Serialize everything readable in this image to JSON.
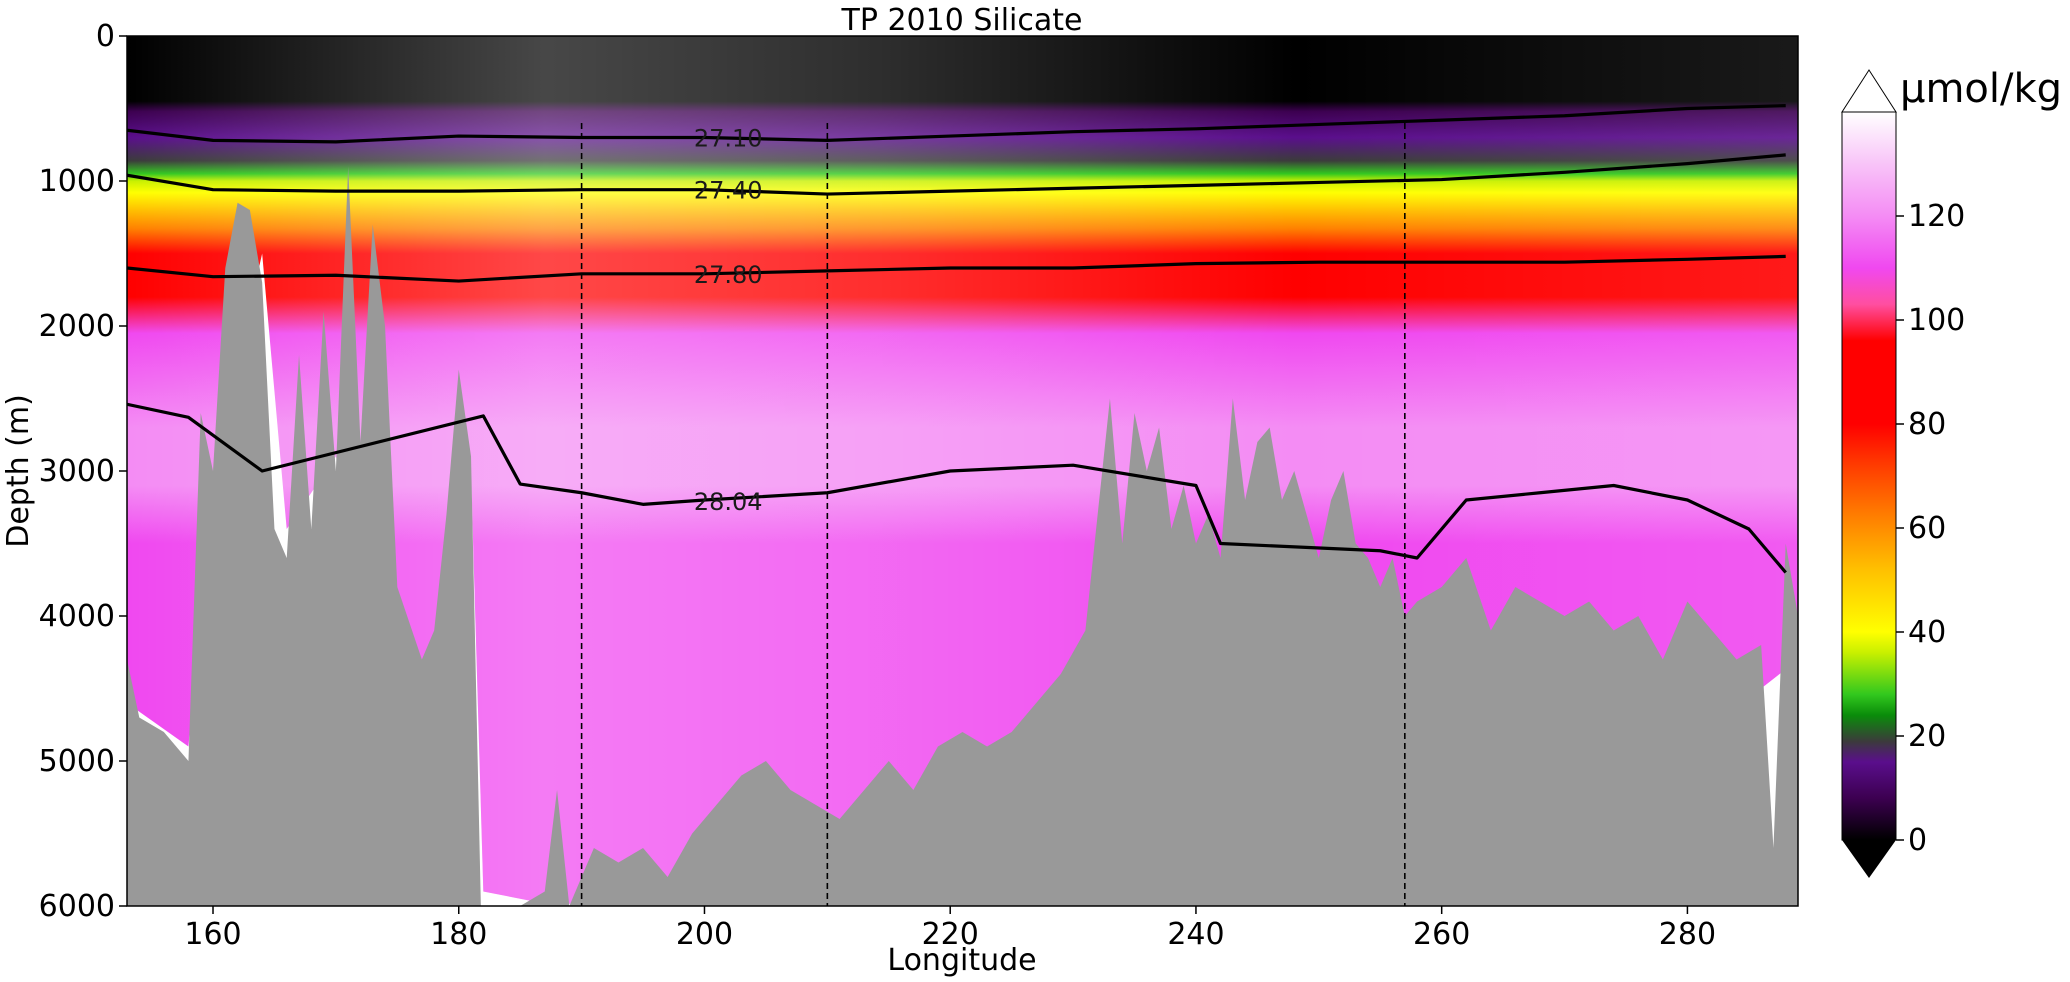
{
  "chart_data": {
    "type": "heatmap",
    "title": "TP 2010 Silicate",
    "xlabel": "Longitude",
    "ylabel": "Depth (m)",
    "xlim": [
      153,
      289
    ],
    "ylim": [
      6000,
      0
    ],
    "xticks": [
      160,
      180,
      200,
      220,
      240,
      260,
      280
    ],
    "yticks": [
      0,
      1000,
      2000,
      3000,
      4000,
      5000,
      6000
    ],
    "colorbar": {
      "label": "µmol/kg",
      "range": [
        0,
        140
      ],
      "ticks": [
        0,
        20,
        40,
        60,
        80,
        100,
        120
      ],
      "extend": "both",
      "stops": [
        {
          "value": 0,
          "color": "#000000"
        },
        {
          "value": 8,
          "color": "#3c0050"
        },
        {
          "value": 15,
          "color": "#5a0e8c"
        },
        {
          "value": 19,
          "color": "#3b3b3b"
        },
        {
          "value": 24,
          "color": "#0a8c0a"
        },
        {
          "value": 28,
          "color": "#32c81e"
        },
        {
          "value": 36,
          "color": "#c8f000"
        },
        {
          "value": 40,
          "color": "#ffff00"
        },
        {
          "value": 52,
          "color": "#ffc000"
        },
        {
          "value": 62,
          "color": "#ff8000"
        },
        {
          "value": 72,
          "color": "#ff3c00"
        },
        {
          "value": 80,
          "color": "#ff0000"
        },
        {
          "value": 96,
          "color": "#ff0000"
        },
        {
          "value": 103,
          "color": "#ff4ea0"
        },
        {
          "value": 110,
          "color": "#f048f0"
        },
        {
          "value": 120,
          "color": "#f48cf4"
        },
        {
          "value": 130,
          "color": "#f8c4f8"
        },
        {
          "value": 140,
          "color": "#ffffff"
        }
      ],
      "under_color": "#000000",
      "over_color": "#ffffff"
    },
    "contours": [
      {
        "level": "27.10",
        "label_lon": 199,
        "depth": [
          [
            153,
            650
          ],
          [
            160,
            720
          ],
          [
            170,
            730
          ],
          [
            180,
            690
          ],
          [
            190,
            700
          ],
          [
            200,
            700
          ],
          [
            210,
            720
          ],
          [
            220,
            690
          ],
          [
            230,
            660
          ],
          [
            240,
            640
          ],
          [
            250,
            610
          ],
          [
            260,
            580
          ],
          [
            270,
            550
          ],
          [
            280,
            500
          ],
          [
            288,
            480
          ]
        ]
      },
      {
        "level": "27.40",
        "label_lon": 199,
        "depth": [
          [
            153,
            960
          ],
          [
            160,
            1060
          ],
          [
            170,
            1070
          ],
          [
            180,
            1070
          ],
          [
            190,
            1060
          ],
          [
            200,
            1060
          ],
          [
            210,
            1090
          ],
          [
            220,
            1070
          ],
          [
            230,
            1050
          ],
          [
            240,
            1030
          ],
          [
            250,
            1010
          ],
          [
            260,
            990
          ],
          [
            270,
            940
          ],
          [
            280,
            880
          ],
          [
            288,
            820
          ]
        ]
      },
      {
        "level": "27.80",
        "label_lon": 199,
        "depth": [
          [
            153,
            1600
          ],
          [
            160,
            1660
          ],
          [
            170,
            1650
          ],
          [
            180,
            1690
          ],
          [
            190,
            1640
          ],
          [
            200,
            1640
          ],
          [
            210,
            1620
          ],
          [
            220,
            1600
          ],
          [
            230,
            1600
          ],
          [
            240,
            1570
          ],
          [
            250,
            1560
          ],
          [
            260,
            1560
          ],
          [
            270,
            1560
          ],
          [
            280,
            1540
          ],
          [
            288,
            1520
          ]
        ]
      },
      {
        "level": "28.04",
        "label_lon": 199,
        "depth": [
          [
            153,
            2540
          ],
          [
            158,
            2630
          ],
          [
            164,
            3000
          ],
          [
            182,
            2620
          ],
          [
            185,
            3090
          ],
          [
            190,
            3150
          ],
          [
            195,
            3230
          ],
          [
            200,
            3200
          ],
          [
            210,
            3150
          ],
          [
            220,
            3000
          ],
          [
            230,
            2960
          ],
          [
            240,
            3100
          ],
          [
            242,
            3500
          ],
          [
            255,
            3550
          ],
          [
            258,
            3600
          ],
          [
            262,
            3200
          ],
          [
            268,
            3150
          ],
          [
            274,
            3100
          ],
          [
            280,
            3200
          ],
          [
            285,
            3400
          ],
          [
            288,
            3700
          ]
        ]
      }
    ],
    "vertical_lines_lon": [
      190,
      210,
      257
    ],
    "bathymetry": [
      [
        153,
        4300
      ],
      [
        154,
        4700
      ],
      [
        156,
        4800
      ],
      [
        158,
        5000
      ],
      [
        159,
        2600
      ],
      [
        160,
        3000
      ],
      [
        161,
        1600
      ],
      [
        162,
        1150
      ],
      [
        163,
        1200
      ],
      [
        164,
        1700
      ],
      [
        165,
        3400
      ],
      [
        166,
        3600
      ],
      [
        167,
        2200
      ],
      [
        168,
        3400
      ],
      [
        169,
        1900
      ],
      [
        170,
        3000
      ],
      [
        171,
        900
      ],
      [
        172,
        2800
      ],
      [
        173,
        1300
      ],
      [
        174,
        2000
      ],
      [
        175,
        3800
      ],
      [
        177,
        4300
      ],
      [
        178,
        4100
      ],
      [
        179,
        3300
      ],
      [
        180,
        2300
      ],
      [
        181,
        2900
      ],
      [
        181.8,
        6000
      ],
      [
        185,
        6000
      ],
      [
        187,
        5900
      ],
      [
        188,
        5200
      ],
      [
        189,
        6000
      ],
      [
        191,
        5600
      ],
      [
        193,
        5700
      ],
      [
        195,
        5600
      ],
      [
        197,
        5800
      ],
      [
        199,
        5500
      ],
      [
        201,
        5300
      ],
      [
        203,
        5100
      ],
      [
        205,
        5000
      ],
      [
        207,
        5200
      ],
      [
        209,
        5300
      ],
      [
        211,
        5400
      ],
      [
        213,
        5200
      ],
      [
        215,
        5000
      ],
      [
        217,
        5200
      ],
      [
        219,
        4900
      ],
      [
        221,
        4800
      ],
      [
        223,
        4900
      ],
      [
        225,
        4800
      ],
      [
        227,
        4600
      ],
      [
        229,
        4400
      ],
      [
        231,
        4100
      ],
      [
        232,
        3300
      ],
      [
        233,
        2500
      ],
      [
        234,
        3500
      ],
      [
        235,
        2600
      ],
      [
        236,
        3000
      ],
      [
        237,
        2700
      ],
      [
        238,
        3400
      ],
      [
        239,
        3100
      ],
      [
        240,
        3500
      ],
      [
        241,
        3300
      ],
      [
        242,
        3600
      ],
      [
        243,
        2500
      ],
      [
        244,
        3200
      ],
      [
        245,
        2800
      ],
      [
        246,
        2700
      ],
      [
        247,
        3200
      ],
      [
        248,
        3000
      ],
      [
        249,
        3300
      ],
      [
        250,
        3600
      ],
      [
        251,
        3200
      ],
      [
        252,
        3000
      ],
      [
        253,
        3500
      ],
      [
        254,
        3600
      ],
      [
        255,
        3800
      ],
      [
        256,
        3600
      ],
      [
        257,
        4000
      ],
      [
        258,
        3900
      ],
      [
        260,
        3800
      ],
      [
        262,
        3600
      ],
      [
        264,
        4100
      ],
      [
        266,
        3800
      ],
      [
        268,
        3900
      ],
      [
        270,
        4000
      ],
      [
        272,
        3900
      ],
      [
        274,
        4100
      ],
      [
        276,
        4000
      ],
      [
        278,
        4300
      ],
      [
        280,
        3900
      ],
      [
        282,
        4100
      ],
      [
        284,
        4300
      ],
      [
        286,
        4200
      ],
      [
        287,
        5600
      ],
      [
        288,
        3500
      ],
      [
        289,
        4000
      ]
    ],
    "fill_depth_limit": [
      [
        153,
        4600
      ],
      [
        158,
        4900
      ],
      [
        160,
        3000
      ],
      [
        164,
        1500
      ],
      [
        166,
        3400
      ],
      [
        170,
        2900
      ],
      [
        175,
        4300
      ],
      [
        178,
        4300
      ],
      [
        181,
        3000
      ],
      [
        182,
        5900
      ],
      [
        188,
        6000
      ],
      [
        286,
        4500
      ],
      [
        289,
        4300
      ]
    ]
  }
}
